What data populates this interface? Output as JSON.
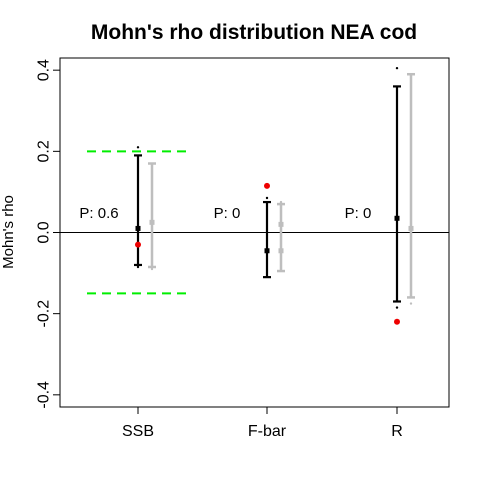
{
  "chart_data": {
    "type": "errorbar",
    "title": "Mohn's rho distribution NEA cod",
    "xlabel": "",
    "ylabel": "Mohn's rho",
    "ylim": [
      -0.43,
      0.43
    ],
    "yticks": [
      {
        "value": -0.4,
        "label": "-0.4"
      },
      {
        "value": -0.2,
        "label": "-0.2"
      },
      {
        "value": 0.0,
        "label": "0.0"
      },
      {
        "value": 0.2,
        "label": "0.2"
      },
      {
        "value": 0.4,
        "label": "0.4"
      }
    ],
    "categories": [
      "SSB",
      "F-bar",
      "R"
    ],
    "grid": false,
    "legend": "none",
    "reference_lines": [
      {
        "kind": "solid",
        "value": 0.0,
        "color": "#000000"
      },
      {
        "kind": "dashed",
        "value": 0.2,
        "color": "#00ee00",
        "category": "SSB"
      },
      {
        "kind": "dashed",
        "value": -0.15,
        "color": "#00ee00",
        "category": "SSB"
      }
    ],
    "p_labels": [
      {
        "category": "SSB",
        "text": "P: 0.6"
      },
      {
        "category": "F-bar",
        "text": "P: 0"
      },
      {
        "category": "R",
        "text": "P: 0"
      }
    ],
    "series": [
      {
        "color": "#000000",
        "values": [
          {
            "lower": -0.08,
            "center": 0.01,
            "upper": 0.19,
            "min_point": -0.085,
            "max_point": 0.21
          },
          {
            "lower": -0.11,
            "center": -0.045,
            "upper": 0.075,
            "max_point": 0.085
          },
          {
            "lower": -0.17,
            "center": 0.035,
            "upper": 0.36,
            "min_point": -0.185,
            "max_point": 0.405
          }
        ]
      },
      {
        "color": "#bebebe",
        "values": [
          {
            "lower": -0.085,
            "center": 0.025,
            "upper": 0.17,
            "min_point": -0.09
          },
          {
            "lower": -0.095,
            "center": -0.045,
            "upper": 0.07,
            "mid_point": 0.02,
            "max_point": 0.075
          },
          {
            "lower": -0.16,
            "center": 0.01,
            "upper": 0.39,
            "min_point": -0.175
          }
        ]
      }
    ],
    "highlight_points": [
      {
        "category": "SSB",
        "value": -0.03,
        "color": "#ee0000"
      },
      {
        "category": "F-bar",
        "value": 0.115,
        "color": "#ee0000"
      },
      {
        "category": "R",
        "value": -0.22,
        "color": "#ee0000"
      }
    ]
  }
}
